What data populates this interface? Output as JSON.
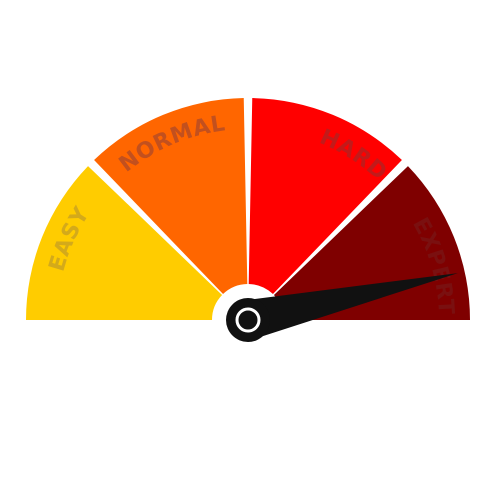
{
  "gauge": {
    "segments": [
      {
        "label": "EASY",
        "color": "#FFCC00",
        "text_color": "#D4AA1A"
      },
      {
        "label": "NORMAL",
        "color": "#FF6600",
        "text_color": "#C2501E"
      },
      {
        "label": "HARD",
        "color": "#FF0000",
        "text_color": "#C21A1A"
      },
      {
        "label": "EXPERT",
        "color": "#7F0000",
        "text_color": "#7A1010"
      }
    ],
    "needle": {
      "level": 0.93,
      "color": "#111111"
    },
    "hub_color": "#111111",
    "gap_color": "#ffffff"
  }
}
